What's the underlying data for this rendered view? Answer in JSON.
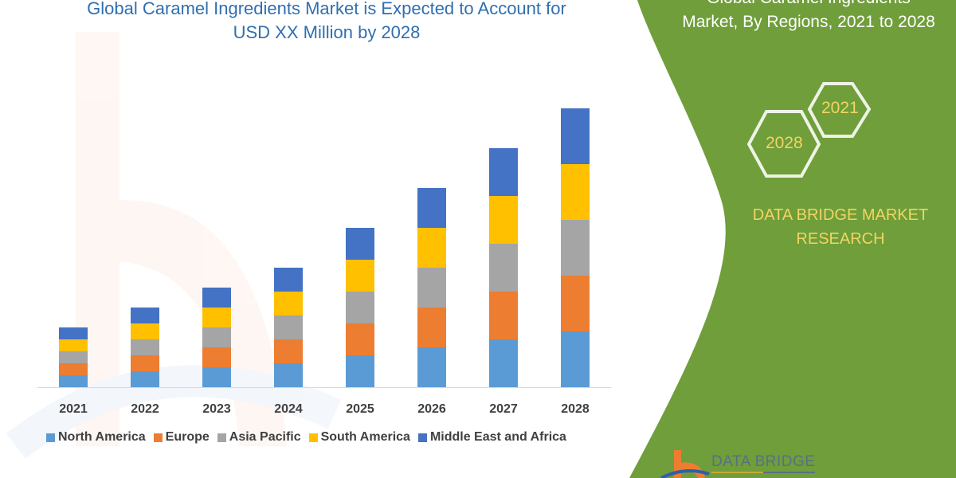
{
  "header": {
    "title_line1": "Global Caramel Ingredients Market is Expected to Account for",
    "title_line2": "USD XX Million by 2028"
  },
  "side_panel": {
    "title_line1": "Global Caramel Ingredients",
    "title_line2": "Market, By Regions, 2021 to 2028",
    "hex_start": "2021",
    "hex_end": "2028",
    "brand_line1": "DATA BRIDGE MARKET",
    "brand_line2": "RESEARCH",
    "logo_text": "DATA BRIDGE",
    "panel_color": "#6f9e3a",
    "accent_text_color": "#f2d563"
  },
  "chart_data": {
    "type": "bar",
    "stacked": true,
    "categories": [
      "2021",
      "2022",
      "2023",
      "2024",
      "2025",
      "2026",
      "2027",
      "2028"
    ],
    "series": [
      {
        "name": "North America",
        "color": "#5b9bd5",
        "values": [
          15,
          20,
          25,
          30,
          40,
          50,
          60,
          70
        ]
      },
      {
        "name": "Europe",
        "color": "#ed7d31",
        "values": [
          15,
          20,
          25,
          30,
          40,
          50,
          60,
          70
        ]
      },
      {
        "name": "Asia Pacific",
        "color": "#a5a5a5",
        "values": [
          15,
          20,
          25,
          30,
          40,
          50,
          60,
          70
        ]
      },
      {
        "name": "South America",
        "color": "#ffc000",
        "values": [
          15,
          20,
          25,
          30,
          40,
          50,
          60,
          70
        ]
      },
      {
        "name": "Middle East and Africa",
        "color": "#4472c4",
        "values": [
          15,
          20,
          25,
          30,
          40,
          50,
          60,
          70
        ]
      }
    ],
    "ylim": [
      0,
      360
    ],
    "grid": false,
    "legend": "bottom",
    "y_axis_labels_shown": false
  }
}
